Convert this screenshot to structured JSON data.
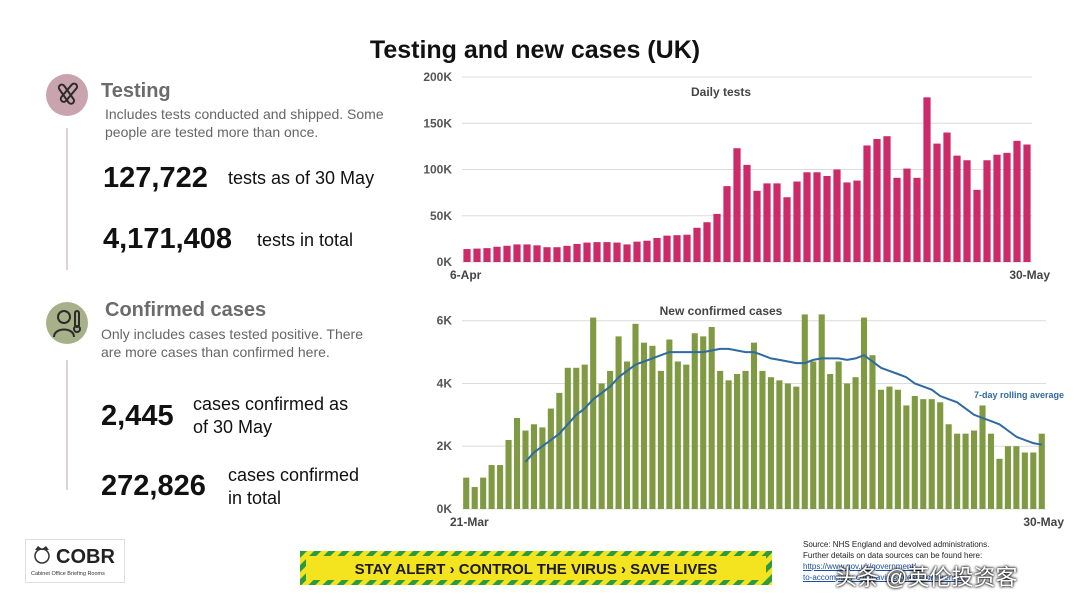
{
  "page": {
    "title": "Testing and new cases (UK)"
  },
  "testing": {
    "title": "Testing",
    "note": "Includes tests conducted and shipped. Some people are tested more than once.",
    "stat1_value": "127,722",
    "stat1_label": "tests as of 30 May",
    "stat2_value": "4,171,408",
    "stat2_label": "tests in total",
    "accent": "#c9a3ad"
  },
  "cases": {
    "title": "Confirmed cases",
    "note": "Only includes cases tested positive. There are more cases than confirmed here.",
    "stat1_value": "2,445",
    "stat1_label": "cases confirmed as of 30 May",
    "stat2_value": "272,826",
    "stat2_label": "cases confirmed in total",
    "accent": "#a8b08a"
  },
  "footer": {
    "logo_text": "COBR",
    "logo_sub": "Cabinet Office Briefing Rooms",
    "banner": "STAY ALERT › CONTROL THE VIRUS › SAVE LIVES",
    "source_line1": "Source: NHS England and devolved administrations.",
    "source_line2": "Further details on data sources can be found here:",
    "source_link1": "https://www.gov.uk/government/...",
    "source_link2": "to-accompany-coronavirus-press-conferences",
    "watermark": "头条 @英伦投资客"
  },
  "chart_data": [
    {
      "type": "bar",
      "title": "Daily tests",
      "color": "#cc2a68",
      "x_start_label": "6-Apr",
      "x_end_label": "30-May",
      "ylim": [
        0,
        200000
      ],
      "yticks": [
        0,
        50000,
        100000,
        150000,
        200000
      ],
      "ytick_labels": [
        "0K",
        "50K",
        "100K",
        "150K",
        "200K"
      ],
      "grid": true,
      "values": [
        14000,
        14500,
        15000,
        16500,
        17500,
        19000,
        19000,
        18000,
        16000,
        16000,
        17500,
        19500,
        21000,
        21500,
        21500,
        21000,
        19000,
        22000,
        23000,
        26000,
        28500,
        29000,
        29500,
        37000,
        43000,
        52000,
        82000,
        123000,
        105000,
        77000,
        85000,
        85000,
        70000,
        87000,
        97000,
        97000,
        93000,
        100000,
        86000,
        88000,
        126000,
        133000,
        136000,
        91000,
        101000,
        91000,
        178000,
        128000,
        140000,
        115000,
        110000,
        78000,
        110000,
        116000,
        118000,
        131000,
        127000
      ]
    },
    {
      "type": "bar",
      "title": "New confirmed cases",
      "color": "#7f9a42",
      "line_series": {
        "name": "7-day rolling average",
        "color": "#2f6aa0"
      },
      "x_start_label": "21-Mar",
      "x_end_label": "30-May",
      "ylim": [
        0,
        6500
      ],
      "yticks": [
        0,
        2000,
        4000,
        6000
      ],
      "ytick_labels": [
        "0K",
        "2K",
        "4K",
        "6K"
      ],
      "grid": true,
      "values": [
        1000,
        700,
        1000,
        1400,
        1400,
        2200,
        2900,
        2500,
        2700,
        2600,
        3200,
        3700,
        4500,
        4500,
        4600,
        6100,
        4000,
        4400,
        5500,
        4700,
        5900,
        5300,
        5200,
        4400,
        5400,
        4700,
        4600,
        5600,
        5500,
        5800,
        4400,
        4100,
        4300,
        4400,
        5300,
        4400,
        4200,
        4100,
        4000,
        3900,
        6200,
        4700,
        6200,
        4300,
        4700,
        4000,
        4200,
        6100,
        4900,
        3800,
        3900,
        3800,
        3300,
        3600,
        3500,
        3500,
        3400,
        2700,
        2400,
        2400,
        2500,
        3300,
        2400,
        1600,
        2000,
        2000,
        1800,
        1800,
        2400
      ],
      "rolling_average": [
        null,
        null,
        null,
        null,
        null,
        null,
        null,
        1500,
        1800,
        2000,
        2200,
        2400,
        2700,
        3000,
        3200,
        3500,
        3700,
        3900,
        4200,
        4400,
        4600,
        4700,
        4800,
        4900,
        5000,
        5000,
        5000,
        5000,
        5000,
        5050,
        5100,
        5100,
        5050,
        5000,
        5000,
        4900,
        4800,
        4750,
        4700,
        4650,
        4650,
        4750,
        4800,
        4800,
        4800,
        4750,
        4800,
        4900,
        4700,
        4500,
        4400,
        4300,
        4200,
        4000,
        3900,
        3800,
        3600,
        3500,
        3400,
        3200,
        3000,
        2900,
        2800,
        2700,
        2500,
        2300,
        2200,
        2100,
        2050
      ]
    }
  ]
}
